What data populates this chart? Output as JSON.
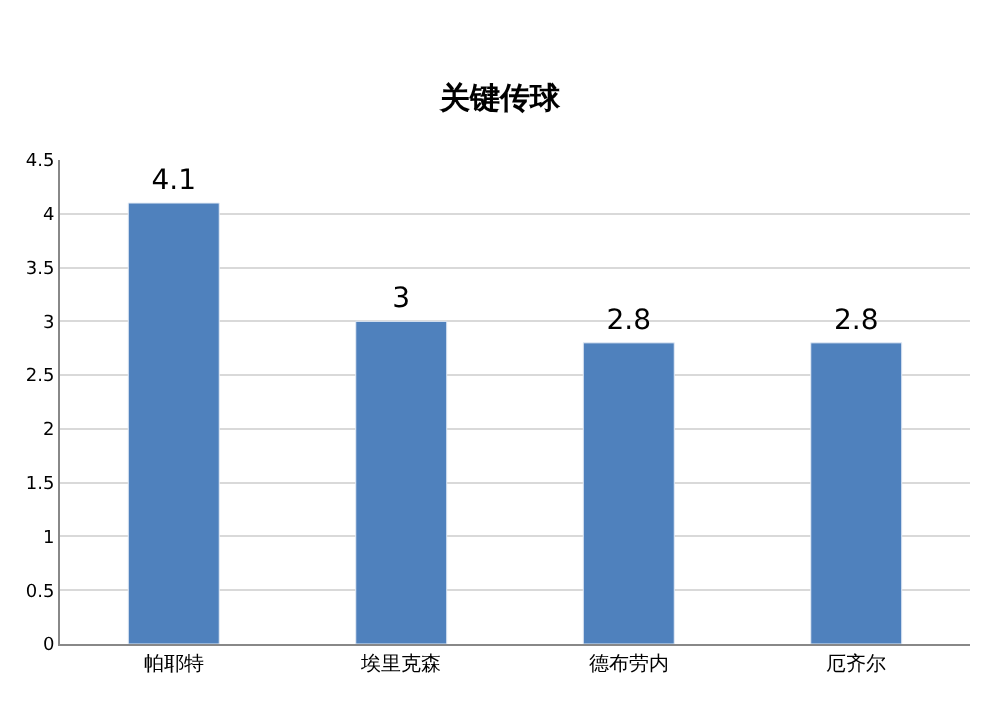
{
  "chart_data": {
    "type": "bar",
    "title": "关键传球",
    "categories": [
      "帕耶特",
      "埃里克森",
      "德布劳内",
      "厄齐尔"
    ],
    "values": [
      4.1,
      3,
      2.8,
      2.8
    ],
    "value_labels": [
      "4.1",
      "3",
      "2.8",
      "2.8"
    ],
    "color": "#4f81bd",
    "ylim": [
      0,
      4.5
    ],
    "yticks": [
      0,
      0.5,
      1,
      1.5,
      2,
      2.5,
      3,
      3.5,
      4,
      4.5
    ],
    "grid": "y",
    "legend": false
  }
}
